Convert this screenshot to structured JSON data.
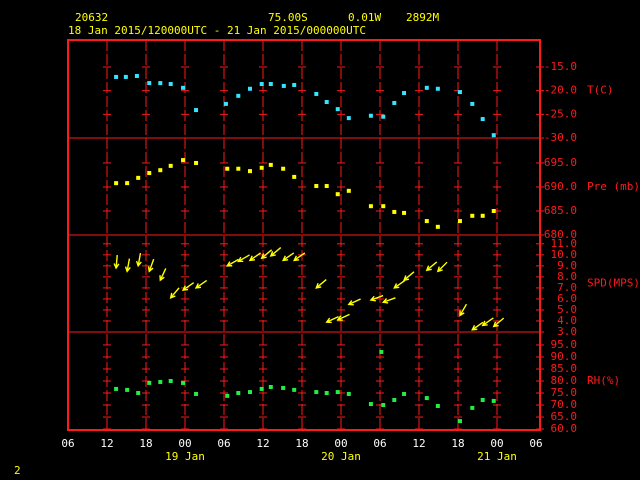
{
  "header": {
    "station": "20632",
    "lat": "75.00S",
    "lon": "0.01W",
    "elevation": "2892M",
    "period": "18 Jan 2015/120000UTC - 21 Jan 2015/000000UTC",
    "page": "2"
  },
  "x_axis": {
    "xlim": [
      0,
      72
    ],
    "xticks": [
      {
        "value": 0,
        "label": "06"
      },
      {
        "value": 6,
        "label": "12"
      },
      {
        "value": 12,
        "label": "18"
      },
      {
        "value": 18,
        "label": "00"
      },
      {
        "value": 24,
        "label": "06"
      },
      {
        "value": 30,
        "label": "12"
      },
      {
        "value": 36,
        "label": "18"
      },
      {
        "value": 42,
        "label": "00"
      },
      {
        "value": 48,
        "label": "06"
      },
      {
        "value": 54,
        "label": "12"
      },
      {
        "value": 60,
        "label": "18"
      },
      {
        "value": 66,
        "label": "00"
      },
      {
        "value": 72,
        "label": "06"
      }
    ],
    "dates": [
      {
        "value": 18,
        "label": "19 Jan"
      },
      {
        "value": 42,
        "label": "20 Jan"
      },
      {
        "value": 66,
        "label": "21 Jan"
      }
    ]
  },
  "chart_data": [
    {
      "type": "scatter",
      "y_label": "T(C)",
      "color": "#33e6ff",
      "ylim": [
        -30,
        -9.3
      ],
      "yticks": [
        {
          "value": -15,
          "label": "-15.0"
        },
        {
          "value": -20,
          "label": "-20.0"
        },
        {
          "value": -25,
          "label": "-25.0"
        },
        {
          "value": -30,
          "label": "-30.0"
        }
      ],
      "x": [
        7.4,
        8.9,
        10.6,
        12.5,
        14.2,
        15.8,
        17.7,
        19.7,
        24.3,
        26.2,
        28.0,
        29.8,
        31.2,
        33.2,
        34.8,
        38.2,
        39.8,
        41.5,
        43.2,
        46.6,
        48.5,
        50.2,
        51.7,
        55.2,
        56.9,
        60.3,
        62.2,
        63.8,
        65.5
      ],
      "values": [
        -17.1,
        -17.1,
        -16.9,
        -18.4,
        -18.4,
        -18.6,
        -19.4,
        -24.1,
        -22.8,
        -21.1,
        -19.6,
        -18.6,
        -18.6,
        -19.0,
        -18.8,
        -20.7,
        -22.4,
        -23.9,
        -25.8,
        -25.3,
        -25.5,
        -22.6,
        -20.5,
        -19.4,
        -19.6,
        -20.3,
        -22.8,
        -26.0,
        -29.4
      ]
    },
    {
      "type": "scatter",
      "y_label": "Pre (mb)",
      "color": "#ffff00",
      "ylim": [
        680,
        700.2
      ],
      "yticks": [
        {
          "value": 695,
          "label": "695.0"
        },
        {
          "value": 690,
          "label": "690.0"
        },
        {
          "value": 685,
          "label": "685.0"
        },
        {
          "value": 680,
          "label": "680.0"
        }
      ],
      "x": [
        7.4,
        9.1,
        10.8,
        12.5,
        14.2,
        15.8,
        17.7,
        19.7,
        24.5,
        26.2,
        28.0,
        29.8,
        31.2,
        33.1,
        34.8,
        38.2,
        39.8,
        41.5,
        43.2,
        46.6,
        48.5,
        50.2,
        51.7,
        55.2,
        56.9,
        60.3,
        62.2,
        63.8,
        65.5
      ],
      "values": [
        690.8,
        690.8,
        691.9,
        692.9,
        693.5,
        694.4,
        695.6,
        695.0,
        693.8,
        693.8,
        693.3,
        694.0,
        694.6,
        693.8,
        692.1,
        690.2,
        690.2,
        688.5,
        689.2,
        686.0,
        686.0,
        684.8,
        684.6,
        682.9,
        681.7,
        682.9,
        684.0,
        684.0,
        685.0
      ]
    },
    {
      "type": "vector",
      "y_label": "SPD(MPS)",
      "color": "#ffff00",
      "ylim": [
        3,
        11.8
      ],
      "yticks": [
        {
          "value": 11,
          "label": "11.0"
        },
        {
          "value": 10,
          "label": "10.0"
        },
        {
          "value": 9,
          "label": "9.0"
        },
        {
          "value": 8,
          "label": "8.0"
        },
        {
          "value": 7,
          "label": "7.0"
        },
        {
          "value": 6,
          "label": "6.0"
        },
        {
          "value": 5,
          "label": "5.0"
        },
        {
          "value": 4,
          "label": "4.0"
        },
        {
          "value": 3,
          "label": "3.0"
        }
      ],
      "x": [
        7.4,
        9.1,
        10.8,
        12.5,
        14.2,
        15.8,
        17.7,
        19.7,
        24.5,
        26.2,
        28.0,
        29.8,
        31.2,
        33.1,
        34.8,
        38.2,
        39.8,
        41.5,
        43.2,
        46.6,
        48.5,
        50.2,
        51.7,
        55.2,
        56.9,
        60.3,
        62.2,
        63.8,
        65.5
      ],
      "values": [
        8.8,
        8.5,
        9.0,
        8.5,
        7.7,
        6.1,
        6.8,
        7.0,
        9.0,
        9.4,
        9.5,
        9.7,
        9.9,
        9.5,
        9.5,
        7.0,
        3.9,
        4.1,
        5.5,
        5.9,
        5.7,
        7.0,
        7.7,
        8.6,
        8.5,
        4.5,
        3.2,
        3.6,
        3.5
      ],
      "directions": [
        95,
        100,
        100,
        110,
        115,
        130,
        145,
        145,
        150,
        150,
        145,
        140,
        140,
        145,
        145,
        140,
        155,
        155,
        155,
        160,
        160,
        145,
        140,
        140,
        135,
        120,
        145,
        145,
        140
      ]
    },
    {
      "type": "scatter",
      "y_label": "RH(%)",
      "color": "#22ee44",
      "ylim": [
        59.6,
        100.4
      ],
      "yticks": [
        {
          "value": 95,
          "label": "95.0"
        },
        {
          "value": 90,
          "label": "90.0"
        },
        {
          "value": 85,
          "label": "85.0"
        },
        {
          "value": 80,
          "label": "80.0"
        },
        {
          "value": 75,
          "label": "75.0"
        },
        {
          "value": 70,
          "label": "70.0"
        },
        {
          "value": 65,
          "label": "65.0"
        },
        {
          "value": 60,
          "label": "60.0"
        }
      ],
      "x": [
        7.4,
        9.1,
        10.8,
        12.5,
        14.2,
        15.8,
        17.7,
        19.7,
        24.5,
        26.2,
        28.0,
        29.8,
        31.2,
        33.1,
        34.8,
        38.2,
        39.8,
        41.5,
        43.2,
        46.6,
        48.2,
        48.5,
        50.2,
        51.7,
        55.2,
        56.9,
        60.3,
        62.2,
        63.8,
        65.5
      ],
      "values": [
        76.7,
        76.3,
        75.0,
        79.2,
        79.6,
        80.0,
        79.2,
        74.6,
        73.8,
        75.0,
        75.4,
        76.7,
        77.5,
        77.1,
        76.3,
        75.4,
        75.0,
        75.4,
        74.6,
        70.4,
        92.1,
        70.0,
        72.1,
        74.6,
        72.9,
        69.6,
        63.3,
        68.8,
        72.1,
        71.7
      ]
    }
  ]
}
